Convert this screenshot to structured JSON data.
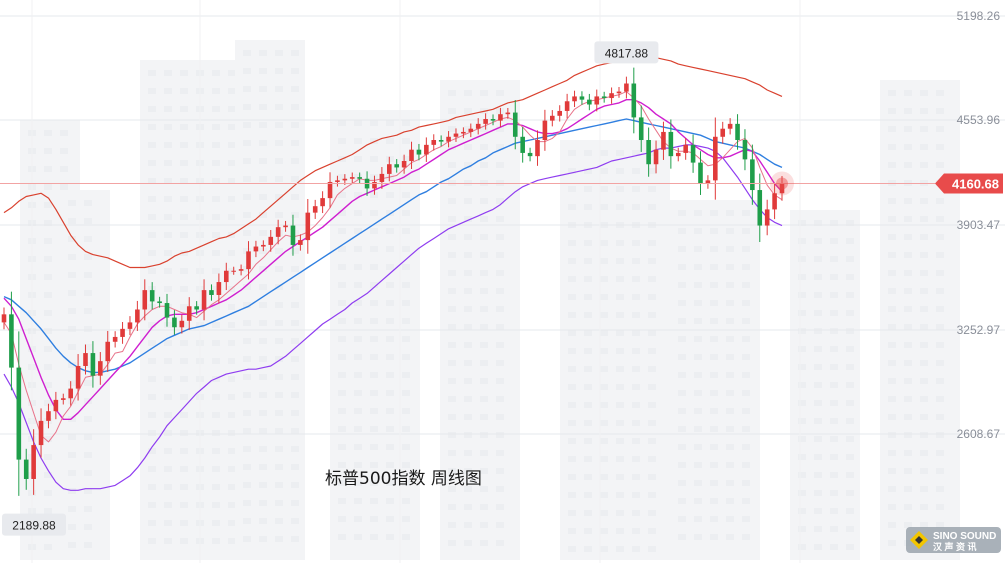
{
  "chart_data": {
    "type": "candlestick",
    "title": "标普500指数  周线图",
    "y_ticks": [
      "5198.26",
      "4553.96",
      "3903.47",
      "3252.97",
      "2608.67"
    ],
    "y_tick_values": [
      5198.26,
      4553.96,
      3903.47,
      3252.97,
      2608.67
    ],
    "ylim": [
      1960,
      5260
    ],
    "last_price_label": "4160.68",
    "last_price": 4160.68,
    "high_label": "4817.88",
    "high_value": 4817.88,
    "low_label": "2189.88",
    "low_value": 2189.88,
    "grid": true,
    "colors": {
      "up": "#e03a3a",
      "down": "#1f9e4a",
      "ma_fast": "#e8738a",
      "ma_mid": "#cf1fd0",
      "ma_slow": "#2f7fe0",
      "bb_upper": "#d9412e",
      "bb_lower": "#8f3df0",
      "price_line": "#f2a3a3",
      "price_tag": "#e84b4b"
    },
    "series": [
      {
        "name": "close",
        "values": [
          3350,
          3020,
          2450,
          2330,
          2540,
          2690,
          2750,
          2820,
          2830,
          2890,
          3030,
          3110,
          2970,
          3060,
          3180,
          3210,
          3260,
          3300,
          3380,
          3500,
          3430,
          3420,
          3330,
          3270,
          3310,
          3400,
          3380,
          3500,
          3470,
          3550,
          3620,
          3620,
          3630,
          3740,
          3770,
          3780,
          3830,
          3890,
          3900,
          3780,
          3810,
          3980,
          4020,
          4070,
          4170,
          4180,
          4190,
          4200,
          4190,
          4130,
          4170,
          4220,
          4280,
          4260,
          4300,
          4370,
          4340,
          4400,
          4430,
          4420,
          4450,
          4470,
          4480,
          4500,
          4530,
          4560,
          4550,
          4590,
          4600,
          4450,
          4350,
          4330,
          4430,
          4550,
          4580,
          4610,
          4670,
          4700,
          4680,
          4650,
          4700,
          4690,
          4720,
          4730,
          4780,
          4570,
          4430,
          4280,
          4370,
          4480,
          4330,
          4350,
          4400,
          4290,
          4160,
          4180,
          4450,
          4500,
          4530,
          4430,
          4310,
          4120,
          3900,
          4000,
          4100,
          4160.68
        ]
      },
      {
        "name": "open",
        "values": [
          3300,
          3350,
          3020,
          2450,
          2330,
          2540,
          2690,
          2750,
          2820,
          2830,
          2890,
          3030,
          3110,
          2970,
          3060,
          3180,
          3210,
          3260,
          3300,
          3380,
          3500,
          3430,
          3420,
          3330,
          3270,
          3310,
          3400,
          3380,
          3500,
          3470,
          3550,
          3620,
          3620,
          3630,
          3740,
          3770,
          3780,
          3830,
          3890,
          3900,
          3780,
          3810,
          3980,
          4020,
          4070,
          4170,
          4180,
          4190,
          4200,
          4190,
          4130,
          4170,
          4220,
          4280,
          4260,
          4300,
          4370,
          4340,
          4400,
          4430,
          4420,
          4450,
          4470,
          4480,
          4500,
          4530,
          4560,
          4550,
          4590,
          4600,
          4450,
          4350,
          4330,
          4430,
          4550,
          4580,
          4610,
          4670,
          4700,
          4680,
          4650,
          4700,
          4690,
          4720,
          4730,
          4780,
          4570,
          4430,
          4280,
          4370,
          4480,
          4330,
          4350,
          4400,
          4290,
          4160,
          4180,
          4450,
          4500,
          4530,
          4430,
          4310,
          4120,
          3900,
          4000,
          4100
        ]
      },
      {
        "name": "MA5",
        "values": [
          3300,
          3230,
          3040,
          2880,
          2740,
          2600,
          2560,
          2620,
          2720,
          2780,
          2870,
          2960,
          2970,
          2980,
          3040,
          3110,
          3120,
          3210,
          3290,
          3340,
          3380,
          3400,
          3400,
          3380,
          3360,
          3350,
          3330,
          3370,
          3410,
          3440,
          3480,
          3520,
          3560,
          3600,
          3660,
          3700,
          3750,
          3800,
          3840,
          3830,
          3840,
          3860,
          3900,
          3950,
          4010,
          4090,
          4130,
          4160,
          4190,
          4180,
          4180,
          4190,
          4200,
          4210,
          4250,
          4290,
          4310,
          4340,
          4370,
          4390,
          4420,
          4440,
          4460,
          4480,
          4500,
          4520,
          4540,
          4560,
          4570,
          4550,
          4510,
          4460,
          4420,
          4420,
          4440,
          4480,
          4560,
          4620,
          4650,
          4670,
          4680,
          4690,
          4700,
          4710,
          4730,
          4690,
          4640,
          4560,
          4490,
          4420,
          4380,
          4360,
          4360,
          4350,
          4310,
          4270,
          4280,
          4320,
          4370,
          4420,
          4440,
          4380,
          4260,
          4150,
          4090,
          4060
        ]
      },
      {
        "name": "MA10",
        "values": [
          3450,
          3400,
          3320,
          3200,
          3080,
          2960,
          2850,
          2760,
          2700,
          2700,
          2740,
          2790,
          2840,
          2890,
          2940,
          2990,
          3040,
          3090,
          3150,
          3210,
          3270,
          3310,
          3340,
          3350,
          3350,
          3350,
          3360,
          3380,
          3400,
          3420,
          3440,
          3470,
          3500,
          3540,
          3580,
          3620,
          3660,
          3700,
          3740,
          3770,
          3800,
          3830,
          3860,
          3890,
          3930,
          3970,
          4010,
          4050,
          4080,
          4100,
          4120,
          4140,
          4160,
          4180,
          4200,
          4230,
          4250,
          4280,
          4310,
          4340,
          4370,
          4390,
          4410,
          4430,
          4450,
          4470,
          4490,
          4510,
          4530,
          4530,
          4520,
          4500,
          4480,
          4470,
          4470,
          4480,
          4500,
          4530,
          4560,
          4590,
          4620,
          4640,
          4650,
          4660,
          4680,
          4680,
          4660,
          4630,
          4590,
          4560,
          4530,
          4480,
          4440,
          4400,
          4370,
          4340,
          4320,
          4320,
          4330,
          4350,
          4370,
          4360,
          4300,
          4230,
          4160,
          4110
        ]
      },
      {
        "name": "MA20",
        "values": [
          3460,
          3440,
          3400,
          3360,
          3310,
          3260,
          3200,
          3140,
          3090,
          3050,
          3020,
          3000,
          2990,
          2990,
          3000,
          3010,
          3030,
          3050,
          3080,
          3110,
          3140,
          3170,
          3200,
          3220,
          3240,
          3260,
          3270,
          3280,
          3300,
          3320,
          3340,
          3360,
          3380,
          3400,
          3430,
          3460,
          3490,
          3520,
          3550,
          3580,
          3610,
          3640,
          3670,
          3700,
          3730,
          3760,
          3790,
          3820,
          3850,
          3880,
          3910,
          3940,
          3970,
          4000,
          4030,
          4060,
          4090,
          4110,
          4140,
          4170,
          4190,
          4220,
          4250,
          4270,
          4300,
          4320,
          4350,
          4370,
          4390,
          4410,
          4420,
          4430,
          4440,
          4450,
          4460,
          4470,
          4480,
          4490,
          4500,
          4510,
          4520,
          4530,
          4540,
          4550,
          4560,
          4550,
          4540,
          4530,
          4520,
          4510,
          4500,
          4490,
          4480,
          4470,
          4460,
          4440,
          4420,
          4410,
          4400,
          4390,
          4380,
          4360,
          4340,
          4310,
          4280,
          4260
        ]
      },
      {
        "name": "BB_upper",
        "values": [
          3980,
          4010,
          4050,
          4080,
          4090,
          4100,
          4070,
          4000,
          3920,
          3840,
          3780,
          3740,
          3720,
          3710,
          3700,
          3680,
          3660,
          3640,
          3640,
          3640,
          3650,
          3660,
          3680,
          3710,
          3730,
          3740,
          3760,
          3780,
          3800,
          3820,
          3830,
          3850,
          3880,
          3910,
          3940,
          3980,
          4020,
          4060,
          4100,
          4140,
          4180,
          4210,
          4240,
          4260,
          4280,
          4300,
          4320,
          4340,
          4370,
          4400,
          4420,
          4440,
          4450,
          4460,
          4480,
          4490,
          4510,
          4520,
          4530,
          4540,
          4550,
          4570,
          4580,
          4590,
          4600,
          4610,
          4620,
          4640,
          4660,
          4670,
          4680,
          4700,
          4720,
          4740,
          4760,
          4780,
          4800,
          4830,
          4850,
          4870,
          4890,
          4900,
          4910,
          4920,
          4930,
          4940,
          4950,
          4950,
          4940,
          4930,
          4920,
          4900,
          4890,
          4880,
          4870,
          4860,
          4850,
          4840,
          4830,
          4820,
          4810,
          4790,
          4770,
          4740,
          4720,
          4700
        ]
      },
      {
        "name": "BB_lower",
        "values": [
          2980,
          2900,
          2800,
          2680,
          2560,
          2460,
          2380,
          2310,
          2270,
          2260,
          2260,
          2270,
          2270,
          2270,
          2280,
          2290,
          2320,
          2350,
          2400,
          2460,
          2530,
          2590,
          2660,
          2710,
          2760,
          2810,
          2860,
          2900,
          2940,
          2960,
          2980,
          2990,
          3000,
          3010,
          3010,
          3020,
          3030,
          3060,
          3090,
          3130,
          3170,
          3210,
          3250,
          3290,
          3320,
          3350,
          3380,
          3420,
          3450,
          3480,
          3520,
          3560,
          3600,
          3640,
          3680,
          3720,
          3760,
          3790,
          3820,
          3850,
          3880,
          3900,
          3920,
          3940,
          3960,
          3980,
          4000,
          4030,
          4070,
          4110,
          4140,
          4160,
          4180,
          4190,
          4200,
          4210,
          4220,
          4230,
          4240,
          4250,
          4260,
          4280,
          4300,
          4310,
          4320,
          4330,
          4340,
          4350,
          4370,
          4380,
          4380,
          4390,
          4400,
          4400,
          4390,
          4380,
          4360,
          4320,
          4260,
          4200,
          4130,
          4060,
          4000,
          3950,
          3920,
          3900
        ]
      }
    ]
  },
  "watermark": {
    "brand_text": "SINO SOUND",
    "brand_sub": "汉 声 资 讯"
  }
}
